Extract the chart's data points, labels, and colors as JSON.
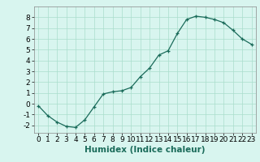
{
  "x": [
    0,
    1,
    2,
    3,
    4,
    5,
    6,
    7,
    8,
    9,
    10,
    11,
    12,
    13,
    14,
    15,
    16,
    17,
    18,
    19,
    20,
    21,
    22,
    23
  ],
  "y": [
    -0.2,
    -1.1,
    -1.7,
    -2.1,
    -2.2,
    -1.5,
    -0.3,
    0.9,
    1.1,
    1.2,
    1.5,
    2.5,
    3.3,
    4.5,
    4.9,
    6.5,
    7.8,
    8.1,
    8.0,
    7.8,
    7.5,
    6.8,
    6.0,
    5.5
  ],
  "xlabel": "Humidex (Indice chaleur)",
  "xlim": [
    -0.5,
    23.5
  ],
  "ylim": [
    -2.7,
    9.0
  ],
  "xticks": [
    0,
    1,
    2,
    3,
    4,
    5,
    6,
    7,
    8,
    9,
    10,
    11,
    12,
    13,
    14,
    15,
    16,
    17,
    18,
    19,
    20,
    21,
    22,
    23
  ],
  "yticks": [
    -2,
    -1,
    0,
    1,
    2,
    3,
    4,
    5,
    6,
    7,
    8
  ],
  "line_color": "#1a6b5a",
  "marker": "+",
  "bg_color": "#d8f5ef",
  "grid_color": "#aaddcc",
  "xlabel_fontsize": 7.5,
  "tick_fontsize": 6.5
}
